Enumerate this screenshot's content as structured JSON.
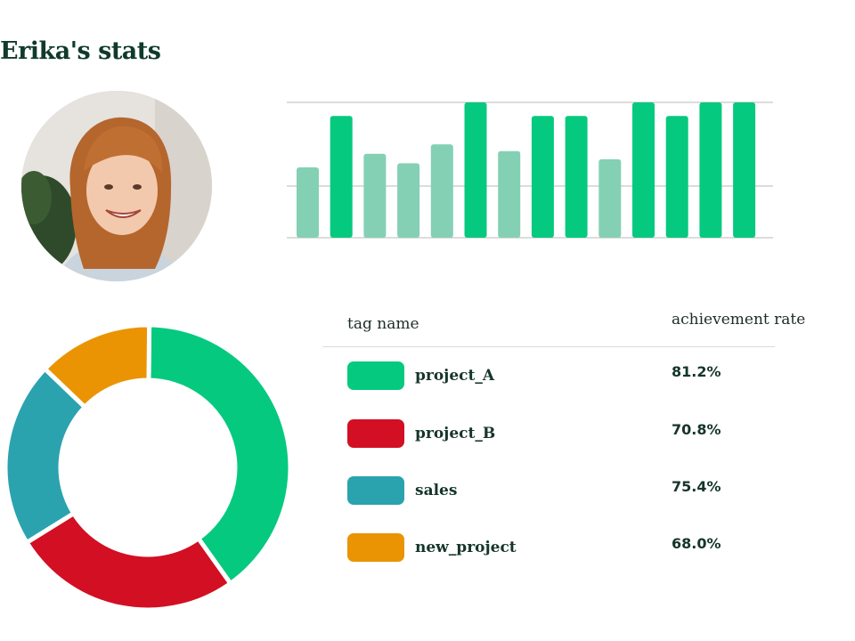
{
  "page": {
    "title": "Erika's stats"
  },
  "avatar": {
    "icon": "person-photo"
  },
  "colors": {
    "green": "#05c97f",
    "light_green": "#84d0b5",
    "red": "#d20f23",
    "teal": "#2aa3af",
    "orange": "#ea9404",
    "gridline": "#c8c8c8"
  },
  "chart_data": [
    {
      "type": "bar",
      "title": "",
      "xlabel": "",
      "ylabel": "",
      "ylim": [
        0,
        100
      ],
      "grid": true,
      "values": [
        52,
        90,
        62,
        55,
        69,
        100,
        64,
        90,
        90,
        58,
        100,
        90,
        100,
        100
      ],
      "bar_colors": [
        "light_green",
        "green",
        "light_green",
        "light_green",
        "light_green",
        "green",
        "light_green",
        "green",
        "green",
        "light_green",
        "green",
        "green",
        "green",
        "green"
      ]
    },
    {
      "type": "pie",
      "style": "donut",
      "title": "",
      "slices": [
        {
          "label": "project_A",
          "value": 40,
          "color": "#05c97f"
        },
        {
          "label": "project_B",
          "value": 26,
          "color": "#d20f23"
        },
        {
          "label": "sales",
          "value": 21,
          "color": "#2aa3af"
        },
        {
          "label": "new_project",
          "value": 13,
          "color": "#ea9404"
        }
      ]
    }
  ],
  "tag_table": {
    "header_name": "tag name",
    "header_rate": "achievement rate",
    "rows": [
      {
        "name": "project_A",
        "rate": "81.2%",
        "color": "#05c97f"
      },
      {
        "name": "project_B",
        "rate": "70.8%",
        "color": "#d20f23"
      },
      {
        "name": "sales",
        "rate": "75.4%",
        "color": "#2aa3af"
      },
      {
        "name": "new_project",
        "rate": "68.0%",
        "color": "#ea9404"
      }
    ]
  }
}
